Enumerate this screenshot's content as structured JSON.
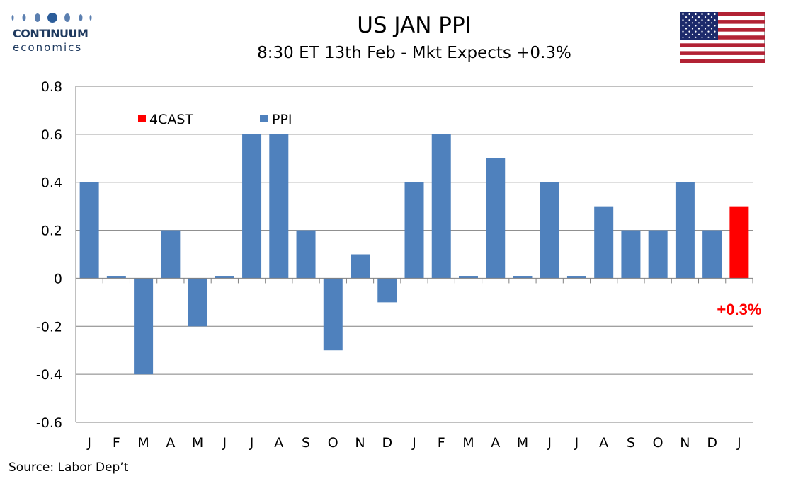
{
  "header": {
    "logo_line1": "CONTINUUM",
    "logo_line2": "economics",
    "title": "US JAN PPI",
    "subtitle": "8:30 ET 13th Feb - Mkt Expects +0.3%"
  },
  "footer": {
    "source": "Source: Labor Dep’t"
  },
  "colors": {
    "ppi": "#4f81bd",
    "forecast": "#ff0000",
    "logo": "#1f3a5f",
    "grid": "#808080"
  },
  "chart_data": {
    "type": "bar",
    "categories": [
      "J",
      "F",
      "M",
      "A",
      "M",
      "J",
      "J",
      "A",
      "S",
      "O",
      "N",
      "D",
      "J",
      "F",
      "M",
      "A",
      "M",
      "J",
      "J",
      "A",
      "S",
      "O",
      "N",
      "D",
      "J"
    ],
    "series": [
      {
        "name": "PPI",
        "values": [
          0.4,
          0.01,
          -0.4,
          0.2,
          -0.2,
          0.01,
          0.6,
          0.6,
          0.2,
          -0.3,
          0.1,
          -0.1,
          0.4,
          0.6,
          0.01,
          0.5,
          0.01,
          0.4,
          0.01,
          0.3,
          0.2,
          0.2,
          0.4,
          0.2,
          null
        ]
      },
      {
        "name": "4CAST",
        "values": [
          null,
          null,
          null,
          null,
          null,
          null,
          null,
          null,
          null,
          null,
          null,
          null,
          null,
          null,
          null,
          null,
          null,
          null,
          null,
          null,
          null,
          null,
          null,
          null,
          0.3
        ]
      }
    ],
    "yticks": [
      "0.8",
      "0.6",
      "0.4",
      "0.2",
      "0",
      "-0.2",
      "-0.4",
      "-0.6"
    ],
    "ylim": [
      -0.6,
      0.8
    ],
    "grid": true,
    "legend_position": "top-left",
    "annotation": "+0.3%"
  }
}
